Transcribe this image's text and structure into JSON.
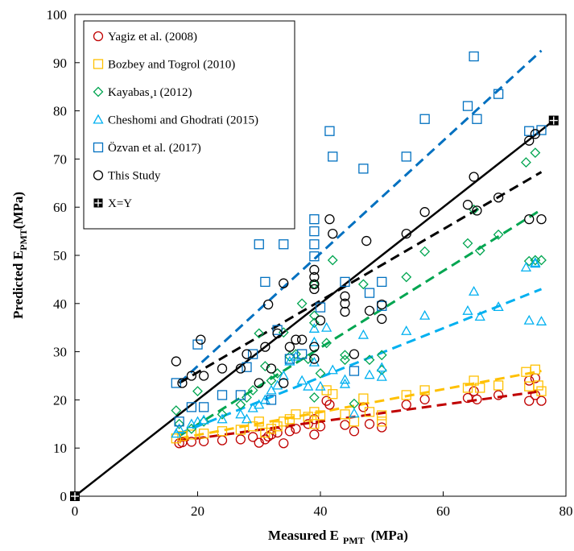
{
  "chart_data": {
    "type": "scatter",
    "title": "",
    "xlabel": "Measured E PMT (MPa)",
    "xlabel_main": "Measured E",
    "xlabel_sub": "PMT",
    "xlabel_unit": "(MPa)",
    "ylabel": "Predicted EPMT(MPa)",
    "ylabel_main": "Predicted E",
    "ylabel_sub": "PMT",
    "ylabel_unit": "(MPa)",
    "xlim": [
      0,
      80
    ],
    "ylim": [
      0,
      100
    ],
    "x_ticks": [
      0,
      20,
      40,
      60,
      80
    ],
    "y_ticks": [
      0,
      10,
      20,
      30,
      40,
      50,
      60,
      70,
      80,
      90,
      100
    ],
    "grid": false,
    "legend_position": "top-left",
    "identity_line": {
      "name": "X=Y",
      "x": [
        0,
        78
      ],
      "y": [
        0,
        78
      ],
      "color": "#000000"
    },
    "series": [
      {
        "name": "Yagiz et al. (2008)",
        "marker": "circle",
        "color": "#c00000",
        "x": [
          17,
          17.5,
          19,
          21,
          24,
          27,
          29,
          30,
          31,
          31.5,
          32,
          33,
          34,
          35,
          36,
          38,
          39,
          39,
          40,
          41,
          41.5,
          44,
          45.5,
          47,
          48,
          50,
          54,
          57,
          64,
          65,
          65.5,
          69,
          74,
          74,
          75,
          75,
          76
        ],
        "y": [
          11,
          11.2,
          11.3,
          11.4,
          11.6,
          11.8,
          12.3,
          11.1,
          11.8,
          12.4,
          12.8,
          13.2,
          11,
          13.5,
          14,
          15,
          12.8,
          16,
          14.5,
          19.8,
          19,
          14.8,
          13.5,
          18.5,
          15,
          14.3,
          19,
          20.1,
          20.4,
          21.8,
          20.1,
          21,
          19.8,
          24,
          24.5,
          21,
          19.8
        ],
        "trend": {
          "x": [
            17,
            76
          ],
          "y": [
            11.5,
            21.8
          ]
        }
      },
      {
        "name": "Bozbey and Togrol (2010)",
        "marker": "square",
        "color": "#ffc000",
        "x": [
          16.5,
          17.5,
          19,
          21,
          24,
          27,
          29,
          30,
          31,
          32,
          33,
          34,
          35,
          36,
          38,
          39,
          39,
          40,
          41,
          42,
          44,
          45.5,
          47,
          48,
          50,
          50,
          54,
          57,
          64,
          65,
          66,
          69,
          73.5,
          74,
          75,
          75.5,
          76
        ],
        "y": [
          12,
          12.5,
          12.8,
          13,
          13.5,
          13.8,
          14.5,
          15.5,
          13.2,
          14,
          14.5,
          15.5,
          16,
          17,
          16.5,
          15,
          17.5,
          16.8,
          22,
          21.2,
          17,
          15.5,
          20.3,
          17.5,
          16.8,
          15.5,
          21,
          22,
          22.5,
          24,
          22.5,
          23,
          25.8,
          22.8,
          26.3,
          23,
          21.8
        ],
        "trend": {
          "x": [
            17,
            76
          ],
          "y": [
            12,
            26
          ]
        }
      },
      {
        "name": "Kayabas¸ı (2012)",
        "marker": "diamond",
        "color": "#00a550",
        "x": [
          16.5,
          17,
          19,
          20,
          21,
          24,
          27,
          28,
          29,
          30,
          31,
          32,
          33,
          34,
          35,
          36,
          37,
          38,
          39,
          39,
          39,
          39,
          40,
          41,
          42,
          44,
          44,
          45.5,
          47,
          48,
          50,
          50,
          54,
          57,
          64,
          65,
          66,
          69,
          73.5,
          74,
          75,
          75,
          76
        ],
        "y": [
          17.8,
          15,
          14,
          21.8,
          15.5,
          17,
          19,
          20.5,
          22,
          33.8,
          27,
          24,
          25.5,
          34,
          29,
          29.5,
          40,
          28.5,
          20.5,
          36,
          37.5,
          44,
          25.5,
          31.8,
          49,
          28.3,
          29.3,
          19.2,
          44,
          28.3,
          26.2,
          29.3,
          45.5,
          50.8,
          52.5,
          59.5,
          51,
          54.3,
          69.3,
          48.8,
          71.3,
          49,
          49
        ],
        "trend": {
          "x": [
            17,
            76
          ],
          "y": [
            12.5,
            59.5
          ]
        }
      },
      {
        "name": "Cheshomi and Ghodrati (2015)",
        "marker": "triangle",
        "color": "#00b0f0",
        "x": [
          16.5,
          17,
          19,
          20,
          21,
          24,
          27,
          28,
          29,
          30,
          31,
          32,
          33,
          34,
          35,
          36,
          37,
          38,
          39,
          39,
          39,
          40,
          41,
          42,
          44,
          44,
          45.5,
          47,
          48,
          50,
          50,
          54,
          57,
          64,
          65,
          66,
          69,
          73.5,
          74,
          75,
          75,
          76
        ],
        "y": [
          13,
          14,
          15,
          15.5,
          15.8,
          16,
          17,
          16,
          18.3,
          19,
          20,
          22,
          23,
          25,
          28,
          29,
          24,
          22.8,
          27.8,
          34.8,
          32,
          22.8,
          35,
          26.2,
          24.2,
          23.3,
          17.2,
          33.5,
          25.2,
          24.8,
          26.7,
          34.3,
          37.5,
          38.5,
          42.5,
          37.3,
          39.3,
          47.5,
          36.5,
          48.5,
          48.3,
          36.3
        ],
        "trend": {
          "x": [
            17,
            76
          ],
          "y": [
            13,
            43
          ]
        }
      },
      {
        "name": "Özvan et al. (2017)",
        "marker": "square",
        "color": "#0070c0",
        "x": [
          16.5,
          17,
          19,
          20,
          21,
          24,
          27,
          28,
          29,
          30,
          31,
          32,
          33,
          34,
          35,
          37,
          39,
          39,
          39,
          39,
          40,
          41.5,
          42,
          44,
          45.5,
          47,
          48,
          50,
          50,
          54,
          57,
          64,
          65,
          65.5,
          69,
          74,
          76
        ],
        "y": [
          23.5,
          15.5,
          18.5,
          31.5,
          18.5,
          21,
          21,
          26.8,
          29.5,
          52.3,
          44.5,
          20,
          34.5,
          52.3,
          28.5,
          29.5,
          57.5,
          55,
          52.3,
          49.8,
          39.2,
          75.8,
          70.5,
          44.5,
          26,
          68,
          42.2,
          39.5,
          44.5,
          70.5,
          78.3,
          81,
          91.3,
          78.3,
          83.5,
          75.8,
          76
        ],
        "trend": {
          "x": [
            17,
            76
          ],
          "y": [
            23.5,
            92.5
          ]
        }
      },
      {
        "name": "This Study",
        "marker": "circle",
        "color": "#000000",
        "x": [
          16.5,
          17.5,
          19,
          20.5,
          21,
          24,
          27,
          28,
          30,
          31,
          31.5,
          32,
          33,
          34,
          34,
          35,
          36,
          37,
          39,
          39,
          39,
          39,
          39,
          39,
          40,
          41.5,
          42,
          44,
          44,
          44,
          45.5,
          47.5,
          48,
          50,
          50,
          54,
          57,
          64,
          65,
          65.5,
          69,
          74,
          74,
          75,
          76
        ],
        "y": [
          28,
          23.5,
          25,
          32.5,
          25,
          26.5,
          26.5,
          29.5,
          23.5,
          31,
          39.8,
          26.5,
          33.8,
          23.5,
          44.2,
          31,
          32.5,
          32.5,
          28.5,
          31,
          43,
          44,
          45.5,
          47,
          36.5,
          57.5,
          54.5,
          40,
          41.5,
          38.3,
          29.5,
          53,
          38.5,
          39.8,
          36.8,
          54.5,
          59,
          60.5,
          66.3,
          59.3,
          62,
          57.5,
          73.8,
          75.2,
          57.5
        ],
        "trend": {
          "x": [
            17,
            76
          ],
          "y": [
            23.5,
            67.3
          ]
        }
      }
    ]
  }
}
